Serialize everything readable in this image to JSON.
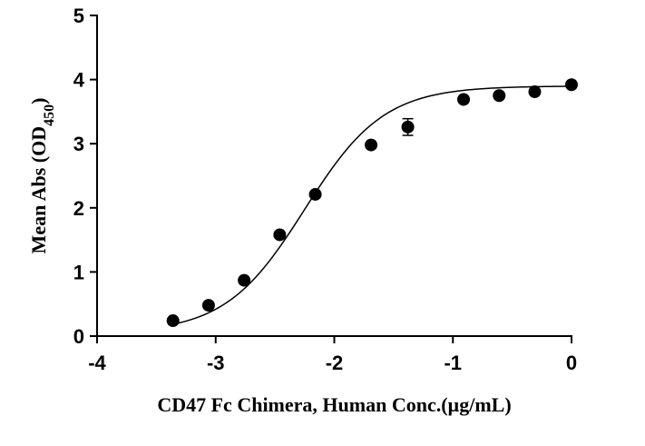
{
  "chart_data": {
    "type": "scatter",
    "title": "",
    "xlabel": "CD47 Fc Chimera, Human Conc.(µg/mL)",
    "ylabel_main": "Mean Abs (OD",
    "ylabel_sub": "450",
    "ylabel_close": ")",
    "xlim": [
      -4,
      0
    ],
    "ylim": [
      0,
      5
    ],
    "x_ticks": [
      -4,
      -3,
      -2,
      -1,
      0
    ],
    "y_ticks": [
      0,
      1,
      2,
      3,
      4,
      5
    ],
    "x_tick_labels": [
      "-4",
      "-3",
      "-2",
      "-1",
      "0"
    ],
    "y_tick_labels": [
      "0",
      "1",
      "2",
      "3",
      "4",
      "5"
    ],
    "grid": false,
    "legend": "none",
    "series": [
      {
        "x": [
          -3.36,
          -3.06,
          -2.76,
          -2.46,
          -2.16,
          -1.69,
          -1.38,
          -0.91,
          -0.61,
          -0.31,
          0.0
        ],
        "y": [
          0.24,
          0.48,
          0.87,
          1.58,
          2.21,
          2.98,
          3.26,
          3.69,
          3.75,
          3.81,
          3.92
        ],
        "error": [
          0,
          0,
          0,
          0,
          0,
          0,
          0.13,
          0,
          0,
          0,
          0
        ]
      }
    ],
    "fit_curve": {
      "model": "4PL",
      "bottom": 0.05,
      "top": 3.9,
      "log_ec50": -2.25,
      "hill_slope": 1.3
    }
  }
}
